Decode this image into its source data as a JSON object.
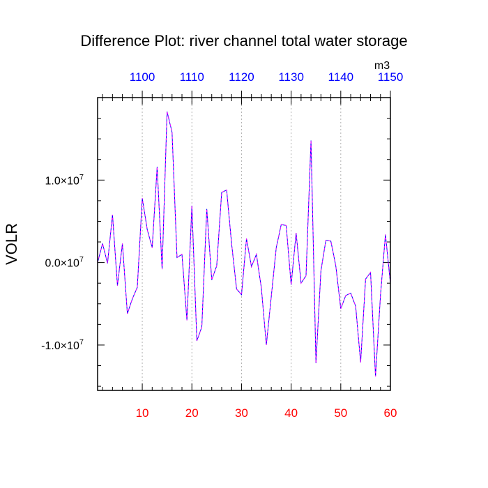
{
  "chart_data": {
    "type": "line",
    "title": "Difference Plot: river channel total water storage",
    "ylabel": "VOLR",
    "units_label": "m3",
    "xlim": [
      1,
      60
    ],
    "ylim": [
      -15500000,
      20000000
    ],
    "grid": "vertical dashed at top-axis ticks",
    "bottom_axis": {
      "ticks": [
        10,
        20,
        30,
        40,
        50,
        60
      ],
      "labels": [
        "10",
        "20",
        "30",
        "40",
        "50",
        "60"
      ],
      "color": "#ff0000"
    },
    "top_axis": {
      "ticks": [
        10,
        20,
        30,
        40,
        50,
        60
      ],
      "labels": [
        "1100",
        "1110",
        "1120",
        "1130",
        "1140",
        "1150"
      ],
      "color": "#0000ff"
    },
    "left_axis": {
      "ticks": [
        -10000000,
        0,
        10000000
      ],
      "labels": [
        {
          "mant": "-1.0",
          "exp": "7"
        },
        {
          "mant": "0.0",
          "exp": "7"
        },
        {
          "mant": "1.0",
          "exp": "7"
        }
      ]
    },
    "series": [
      {
        "color_a": "#0000ff",
        "color_b": "#ff00ff",
        "x": [
          1,
          2,
          3,
          4,
          5,
          6,
          7,
          8,
          9,
          10,
          11,
          12,
          13,
          14,
          15,
          16,
          17,
          18,
          19,
          20,
          21,
          22,
          23,
          24,
          25,
          26,
          27,
          28,
          29,
          30,
          31,
          32,
          33,
          34,
          35,
          36,
          37,
          38,
          39,
          40,
          41,
          42,
          43,
          44,
          45,
          46,
          47,
          48,
          49,
          50,
          51,
          52,
          53,
          54,
          55,
          56,
          57,
          58,
          59,
          60
        ],
        "y": [
          0,
          2300000,
          -100000,
          5800000,
          -2800000,
          2300000,
          -6200000,
          -4400000,
          -3000000,
          7800000,
          4000000,
          1800000,
          11600000,
          -800000,
          18300000,
          15800000,
          600000,
          1000000,
          -7000000,
          6900000,
          -9500000,
          -7800000,
          6500000,
          -2100000,
          -400000,
          8500000,
          8800000,
          2300000,
          -3200000,
          -3900000,
          2900000,
          -500000,
          1000000,
          -3100000,
          -10000000,
          -4100000,
          1800000,
          4600000,
          4500000,
          -2700000,
          3600000,
          -2500000,
          -1600000,
          14800000,
          -12200000,
          -1000000,
          2700000,
          2600000,
          -400000,
          -5600000,
          -4000000,
          -3700000,
          -5300000,
          -12100000,
          -2000000,
          -1200000,
          -13800000,
          -4000000,
          3400000,
          -2500000
        ]
      }
    ]
  }
}
